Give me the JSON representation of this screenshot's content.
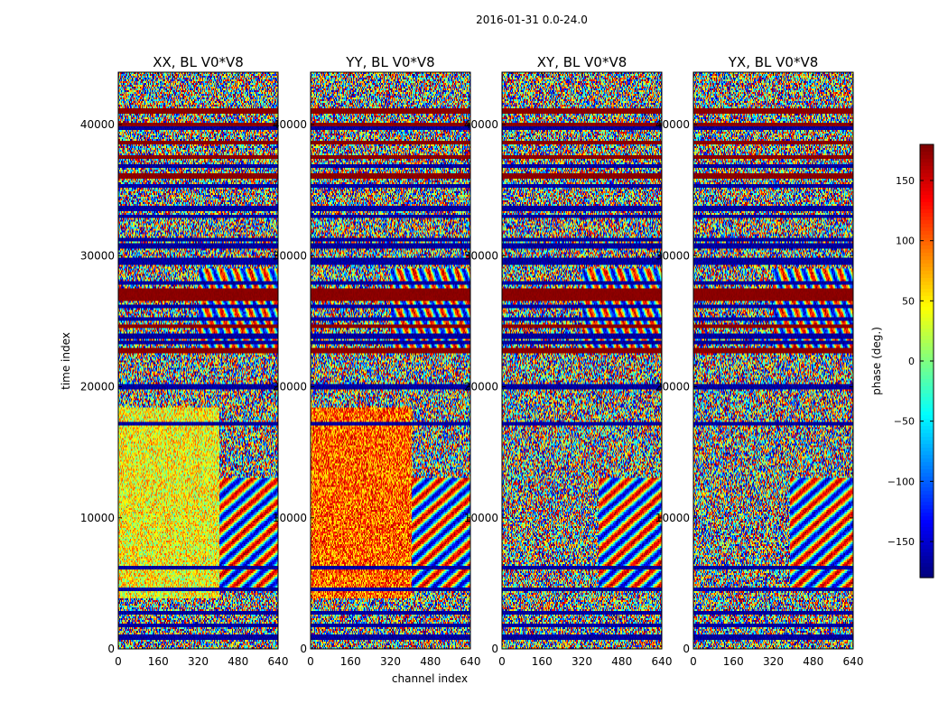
{
  "suptitle": "2016-01-31 0.0-24.0",
  "chart_data": {
    "type": "heatmap",
    "title": "2016-01-31 0.0-24.0",
    "xlabel": "channel index",
    "ylabel": "time index",
    "x_range": [
      0,
      640
    ],
    "y_range": [
      0,
      44000
    ],
    "x_ticks": [
      0,
      160,
      320,
      480,
      640
    ],
    "y_ticks": [
      0,
      10000,
      20000,
      30000,
      40000
    ],
    "panels": [
      {
        "title": "XX, BL V0*V8",
        "pol": "XX"
      },
      {
        "title": "YY, BL V0*V8",
        "pol": "YY"
      },
      {
        "title": "XY, BL V0*V8",
        "pol": "XY"
      },
      {
        "title": "YX, BL V0*V8",
        "pol": "YX"
      }
    ],
    "colorbar": {
      "label": "phase (deg.)",
      "range": [
        -180,
        180
      ],
      "ticks": [
        -150,
        -100,
        -50,
        0,
        50,
        100,
        150
      ],
      "colormap": "jet"
    }
  }
}
